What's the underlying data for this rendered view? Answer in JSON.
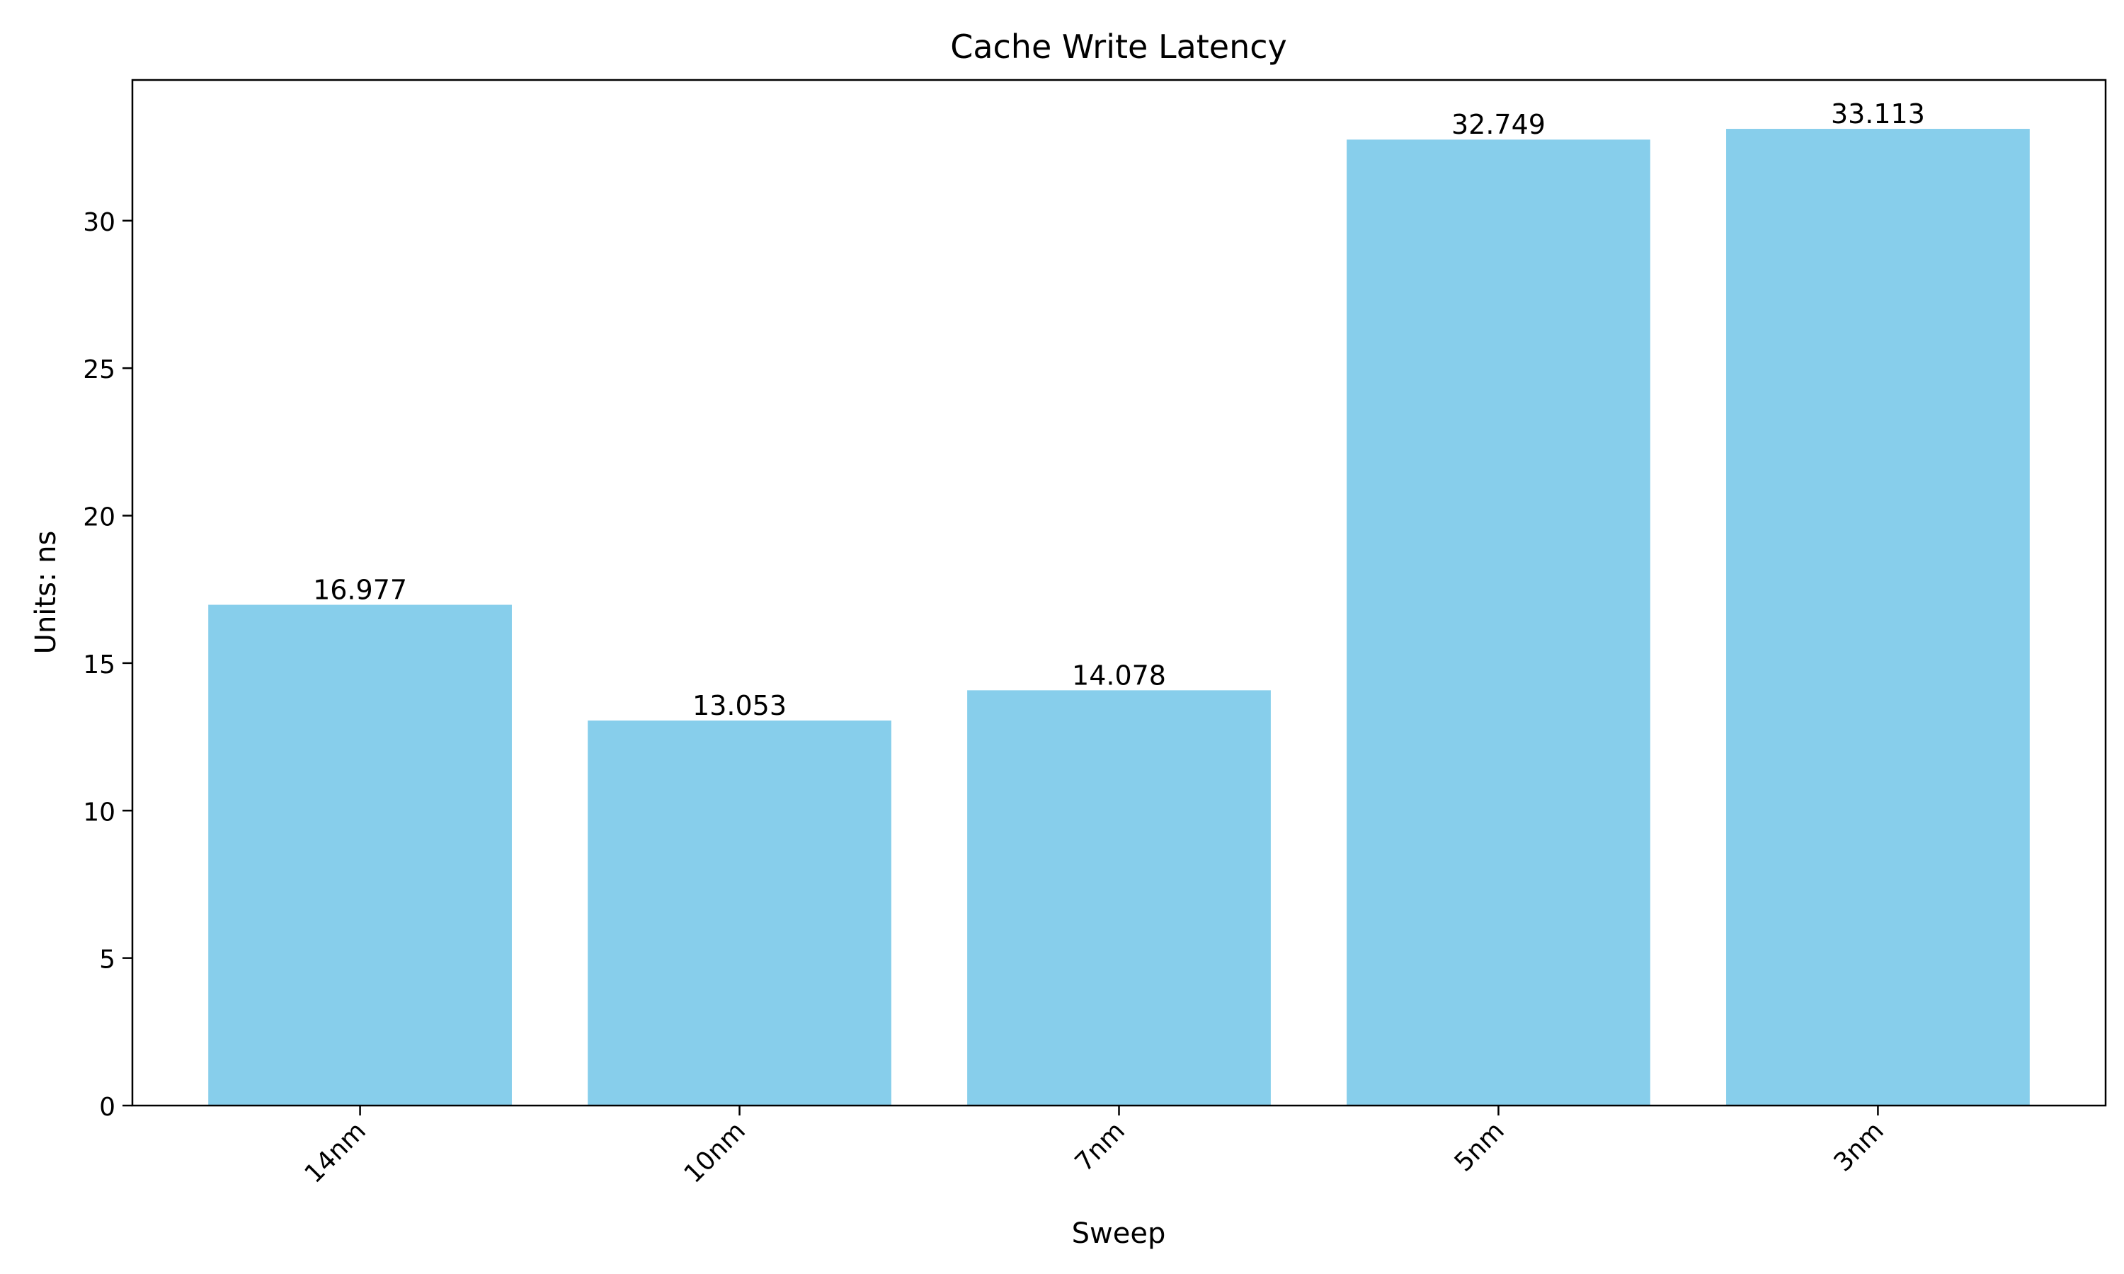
{
  "chart_data": {
    "type": "bar",
    "title": "Cache Write Latency",
    "xlabel": "Sweep",
    "ylabel": "Units: ns",
    "categories": [
      "14nm",
      "10nm",
      "7nm",
      "5nm",
      "3nm"
    ],
    "values": [
      16.977,
      13.053,
      14.078,
      32.749,
      33.113
    ],
    "value_labels": [
      "16.977",
      "13.053",
      "14.078",
      "32.749",
      "33.113"
    ],
    "ylim": [
      0,
      34.77
    ],
    "yticks": [
      0,
      5,
      10,
      15,
      20,
      25,
      30
    ],
    "ytick_labels": [
      "0",
      "5",
      "10",
      "15",
      "20",
      "25",
      "30"
    ],
    "bar_color": "#87CEEB",
    "grid": false,
    "legend": "none"
  }
}
